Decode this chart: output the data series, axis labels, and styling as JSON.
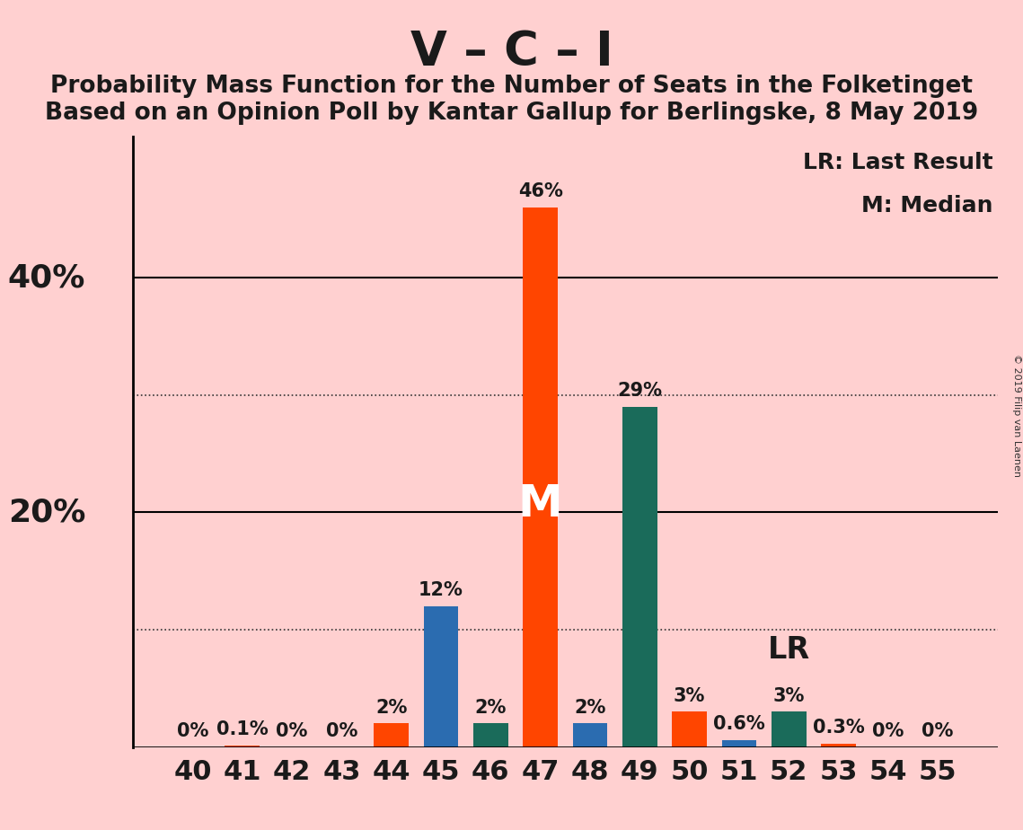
{
  "title": "V – C – I",
  "subtitle1": "Probability Mass Function for the Number of Seats in the Folketinget",
  "subtitle2": "Based on an Opinion Poll by Kantar Gallup for Berlingske, 8 May 2019",
  "seats": [
    40,
    41,
    42,
    43,
    44,
    45,
    46,
    47,
    48,
    49,
    50,
    51,
    52,
    53,
    54,
    55
  ],
  "probabilities": [
    0.0,
    0.1,
    0.0,
    0.0,
    2.0,
    12.0,
    2.0,
    46.0,
    2.0,
    29.0,
    3.0,
    0.6,
    3.0,
    0.3,
    0.0,
    0.0
  ],
  "bar_colors": [
    "#FF4500",
    "#FF4500",
    "#FF4500",
    "#FF4500",
    "#FF4500",
    "#2B6CB0",
    "#1A6B5A",
    "#FF4500",
    "#2B6CB0",
    "#1A6B5A",
    "#FF4500",
    "#2B6CB0",
    "#1A6B5A",
    "#FF4500",
    "#FF4500",
    "#FF4500"
  ],
  "median_seat": 47,
  "lr_seat": 52,
  "background_color": "#FFD0D0",
  "solid_yticks": [
    0,
    20,
    40
  ],
  "dotted_yticks": [
    10,
    30
  ],
  "ylabel_vals": [
    20,
    40
  ],
  "ylabel_texts": [
    "20%",
    "40%"
  ],
  "copyright_text": "© 2019 Filip van Laenen",
  "legend_lr": "LR: Last Result",
  "legend_m": "M: Median",
  "label_fontsize": 20,
  "title_fontsize": 38,
  "subtitle_fontsize": 19,
  "annot_fontsize": 15,
  "median_label": "M",
  "lr_label": "LR",
  "ylabel_fontsize": 26,
  "xtick_fontsize": 22,
  "legend_fontsize": 18
}
